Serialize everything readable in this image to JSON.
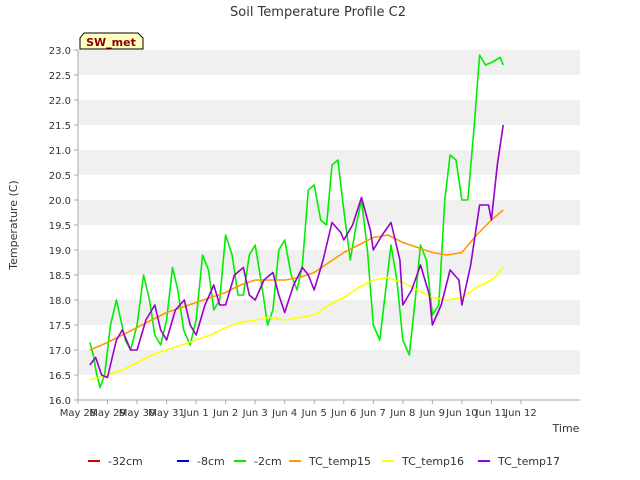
{
  "chart_data": {
    "type": "line",
    "title": "Soil Temperature Profile C2",
    "xlabel": "Time",
    "ylabel": "Temperature (C)",
    "ylim": [
      16.0,
      23.0
    ],
    "xlim": [
      0,
      17
    ],
    "grid": "horizontal bands",
    "annotation": "SW_met",
    "x_ticks": [
      {
        "pos": 0,
        "label": "May 28"
      },
      {
        "pos": 1,
        "label": "May 29"
      },
      {
        "pos": 2,
        "label": "May 30"
      },
      {
        "pos": 3,
        "label": "May 31"
      },
      {
        "pos": 4,
        "label": "Jun 1"
      },
      {
        "pos": 5,
        "label": "Jun 2"
      },
      {
        "pos": 6,
        "label": "Jun 3"
      },
      {
        "pos": 7,
        "label": "Jun 4"
      },
      {
        "pos": 8,
        "label": "Jun 5"
      },
      {
        "pos": 9,
        "label": "Jun 6"
      },
      {
        "pos": 10,
        "label": "Jun 7"
      },
      {
        "pos": 11,
        "label": "Jun 8"
      },
      {
        "pos": 12,
        "label": "Jun 9"
      },
      {
        "pos": 13,
        "label": "Jun 10"
      },
      {
        "pos": 14,
        "label": "Jun 11"
      },
      {
        "pos": 15,
        "label": "Jun 12"
      }
    ],
    "y_ticks": [
      16.0,
      16.5,
      17.0,
      17.5,
      18.0,
      18.5,
      19.0,
      19.5,
      20.0,
      20.5,
      21.0,
      21.5,
      22.0,
      22.5,
      23.0
    ],
    "y_tick_labels": [
      "16.0",
      "16.5",
      "17.0",
      "17.5",
      "18.0",
      "18.5",
      "19.0",
      "19.5",
      "20.0",
      "20.5",
      "21.0",
      "21.5",
      "22.0",
      "22.5",
      "23.0"
    ],
    "series": [
      {
        "name": "-32cm",
        "color": "#cc0000",
        "x": [],
        "y": []
      },
      {
        "name": "-8cm",
        "color": "#0000cc",
        "x": [],
        "y": []
      },
      {
        "name": "-2cm",
        "color": "#00ee00",
        "x": [
          0.4,
          0.52,
          0.62,
          0.75,
          0.9,
          1.1,
          1.3,
          1.45,
          1.6,
          1.78,
          2.0,
          2.22,
          2.42,
          2.6,
          2.8,
          3.0,
          3.2,
          3.38,
          3.58,
          3.8,
          4.0,
          4.22,
          4.42,
          4.6,
          4.8,
          5.0,
          5.22,
          5.42,
          5.6,
          5.8,
          6.0,
          6.22,
          6.42,
          6.6,
          6.8,
          7.0,
          7.22,
          7.42,
          7.6,
          7.8,
          8.0,
          8.22,
          8.42,
          8.6,
          8.8,
          9.0,
          9.22,
          9.42,
          9.6,
          9.8,
          10.0,
          10.22,
          10.42,
          10.6,
          10.8,
          11.0,
          11.22,
          11.42,
          11.6,
          11.8,
          12.0,
          12.22,
          12.42,
          12.6,
          12.8,
          13.0,
          13.2,
          13.42,
          13.6,
          13.8,
          14.0,
          14.15,
          14.3,
          14.4
        ],
        "y": [
          17.15,
          16.9,
          16.55,
          16.25,
          16.5,
          17.5,
          18.0,
          17.6,
          17.2,
          17.0,
          17.5,
          18.5,
          18.0,
          17.3,
          17.1,
          17.6,
          18.65,
          18.2,
          17.4,
          17.1,
          17.6,
          18.9,
          18.6,
          17.8,
          18.0,
          19.3,
          18.9,
          18.1,
          18.1,
          18.9,
          19.1,
          18.3,
          17.5,
          17.8,
          19.0,
          19.2,
          18.5,
          18.2,
          18.7,
          20.2,
          20.3,
          19.6,
          19.5,
          20.7,
          20.8,
          19.8,
          18.8,
          19.5,
          20.0,
          19.0,
          17.5,
          17.2,
          18.2,
          19.1,
          18.4,
          17.2,
          16.9,
          18.0,
          19.1,
          18.8,
          17.7,
          17.9,
          20.0,
          20.9,
          20.8,
          20.0,
          20.0,
          21.5,
          22.9,
          22.7,
          22.75,
          22.8,
          22.85,
          22.7
        ]
      },
      {
        "name": "TC_temp15",
        "color": "#ff9900",
        "x": [
          0.4,
          1.0,
          1.5,
          2.0,
          2.5,
          3.0,
          3.5,
          4.0,
          4.5,
          5.0,
          5.5,
          6.0,
          6.5,
          7.0,
          7.5,
          8.0,
          8.5,
          9.0,
          9.5,
          10.0,
          10.5,
          11.0,
          11.5,
          12.0,
          12.5,
          13.0,
          13.5,
          14.0,
          14.2,
          14.4
        ],
        "y": [
          17.0,
          17.15,
          17.3,
          17.45,
          17.6,
          17.75,
          17.85,
          17.95,
          18.05,
          18.15,
          18.3,
          18.4,
          18.4,
          18.4,
          18.45,
          18.55,
          18.75,
          18.95,
          19.1,
          19.25,
          19.3,
          19.15,
          19.05,
          18.95,
          18.9,
          18.95,
          19.3,
          19.6,
          19.7,
          19.8
        ]
      },
      {
        "name": "TC_temp16",
        "color": "#ffff00",
        "x": [
          0.4,
          1.0,
          1.5,
          2.0,
          2.5,
          3.0,
          3.5,
          4.0,
          4.5,
          5.0,
          5.5,
          6.0,
          6.5,
          7.0,
          7.5,
          8.0,
          8.5,
          9.0,
          9.5,
          10.0,
          10.5,
          11.0,
          11.5,
          12.0,
          12.5,
          13.0,
          13.5,
          14.0,
          14.2,
          14.4
        ],
        "y": [
          16.4,
          16.5,
          16.6,
          16.75,
          16.9,
          17.0,
          17.1,
          17.2,
          17.3,
          17.45,
          17.55,
          17.6,
          17.65,
          17.6,
          17.65,
          17.7,
          17.9,
          18.05,
          18.25,
          18.4,
          18.45,
          18.35,
          18.2,
          18.05,
          18.0,
          18.05,
          18.25,
          18.4,
          18.5,
          18.65
        ]
      },
      {
        "name": "TC_temp17",
        "color": "#9900cc",
        "x": [
          0.4,
          0.6,
          0.8,
          1.0,
          1.3,
          1.5,
          1.78,
          2.0,
          2.3,
          2.6,
          2.8,
          3.0,
          3.3,
          3.6,
          3.8,
          4.0,
          4.3,
          4.6,
          4.8,
          5.0,
          5.3,
          5.6,
          5.8,
          6.0,
          6.3,
          6.6,
          6.8,
          7.0,
          7.3,
          7.6,
          7.8,
          8.0,
          8.3,
          8.6,
          8.9,
          9.0,
          9.3,
          9.6,
          9.9,
          10.0,
          10.3,
          10.6,
          10.9,
          11.0,
          11.3,
          11.6,
          11.9,
          12.0,
          12.3,
          12.6,
          12.9,
          13.0,
          13.3,
          13.6,
          13.9,
          14.0,
          14.2,
          14.4
        ],
        "y": [
          16.7,
          16.85,
          16.5,
          16.45,
          17.2,
          17.4,
          17.0,
          17.0,
          17.6,
          17.9,
          17.4,
          17.2,
          17.8,
          18.0,
          17.5,
          17.3,
          17.9,
          18.3,
          17.9,
          17.9,
          18.5,
          18.65,
          18.1,
          18.0,
          18.4,
          18.55,
          18.1,
          17.75,
          18.3,
          18.65,
          18.5,
          18.2,
          18.8,
          19.55,
          19.35,
          19.2,
          19.5,
          20.05,
          19.4,
          19.0,
          19.3,
          19.55,
          18.8,
          17.9,
          18.2,
          18.7,
          18.1,
          17.5,
          17.9,
          18.6,
          18.4,
          17.9,
          18.7,
          19.9,
          19.9,
          19.6,
          20.7,
          21.5
        ]
      }
    ]
  },
  "legend": {
    "items": [
      {
        "label": "-32cm",
        "color": "#cc0000"
      },
      {
        "label": "-8cm",
        "color": "#0000cc"
      },
      {
        "label": "-2cm",
        "color": "#00ee00"
      },
      {
        "label": "TC_temp15",
        "color": "#ff9900"
      },
      {
        "label": "TC_temp16",
        "color": "#ffff00"
      },
      {
        "label": "TC_temp17",
        "color": "#9900cc"
      }
    ]
  },
  "colors": {
    "band": "#f0f0f0",
    "axis": "#aaaaaa",
    "text": "#333333",
    "annotation_fill": "#ffffc0"
  }
}
